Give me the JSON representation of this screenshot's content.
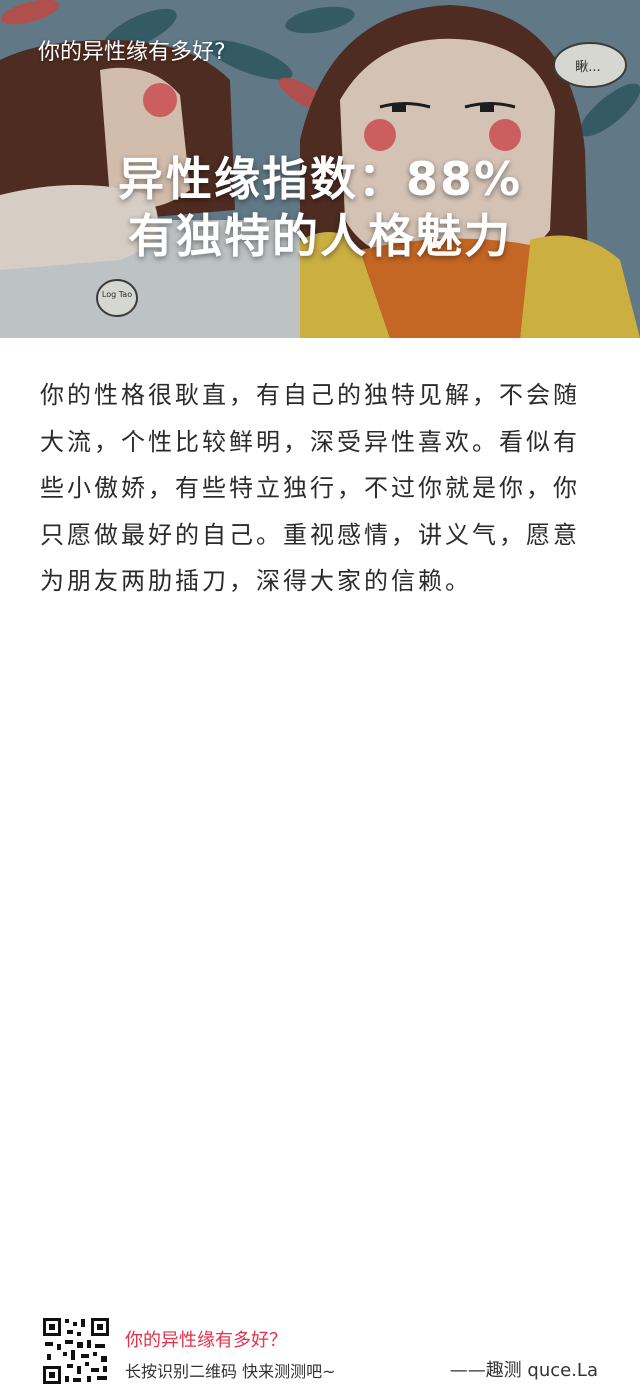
{
  "hero": {
    "top_title": "你的异性缘有多好?",
    "headline_line1": "异性缘指数：88%",
    "headline_line2": "有独特的人格魅力",
    "illustration_bubble_text": "瞅...",
    "illustration_cup_text": "Log Tao"
  },
  "result": {
    "paragraph": "你的性格很耿直，有自己的独特见解，不会随大流，个性比较鲜明，深受异性喜欢。看似有些小傲娇，有些特立独行，不过你就是你，你只愿做最好的自己。重视感情，讲义气，愿意为朋友两肋插刀，深得大家的信赖。"
  },
  "footer": {
    "title": "你的异性缘有多好？",
    "subtitle": "长按识别二维码  快来测测吧~",
    "brand": "——趣测 quce.La"
  },
  "colors": {
    "accent_red": "#e6314b",
    "hair_brown": "#5a3326",
    "dress_yellow": "#e7c84a",
    "shirt_orange": "#e0752a"
  }
}
